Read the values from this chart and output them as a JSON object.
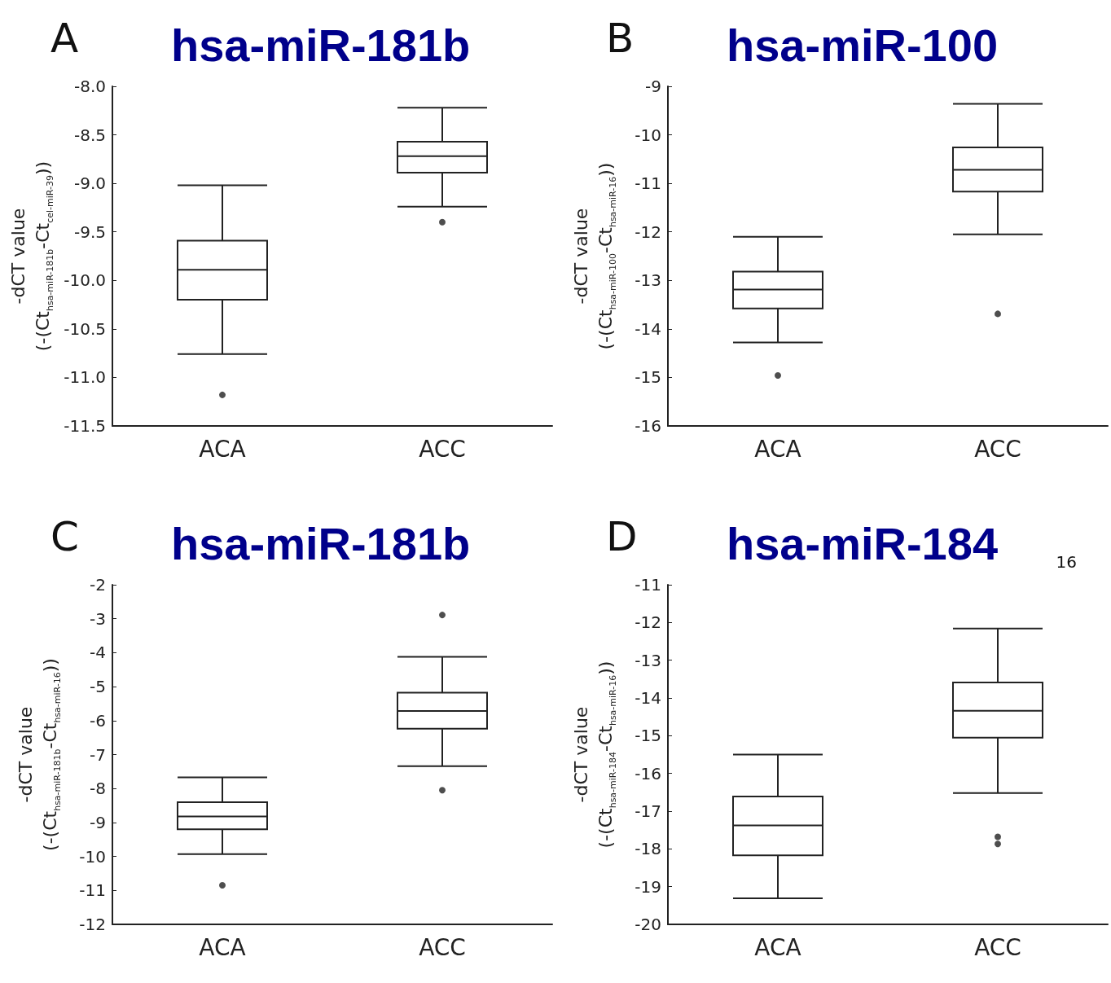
{
  "chart_data": [
    {
      "type": "box",
      "title": "hsa-miR-181b",
      "ylabel": "-dCT value\n(-(Ct$_{hsa-miR-181b}$-Ct$_{cel-miR-39}$))",
      "annotations": [
        "A"
      ],
      "categories": [
        "ACA",
        "ACC"
      ],
      "ylim": [
        -11.5,
        -8.0
      ],
      "yticks": [
        {
          "value": -11.5,
          "label": "-11.5"
        },
        {
          "value": -11,
          "label": "-11.0"
        },
        {
          "value": -10.5,
          "label": "-10.5"
        },
        {
          "value": -10,
          "label": "-10.0"
        },
        {
          "value": -9.5,
          "label": "-9.5"
        },
        {
          "value": -9,
          "label": "-9.0"
        },
        {
          "value": -8.5,
          "label": "-8.5"
        },
        {
          "value": -8,
          "label": "-8.0"
        }
      ],
      "grid": false,
      "boxes": [
        {
          "low": -10.76,
          "q1": -10.2,
          "median": -9.89,
          "q3": -9.59,
          "high": -9.02,
          "outliers": [
            -11.18
          ]
        },
        {
          "low": -9.24,
          "q1": -8.89,
          "median": -8.72,
          "q3": -8.57,
          "high": -8.22,
          "outliers": [
            -9.4
          ]
        }
      ]
    },
    {
      "type": "box",
      "title": "hsa-miR-100",
      "ylabel": "-dCT value\n(-(Ct$_{hsa-miR-100}$-Ct$_{hsa-miR-16}$))",
      "annotations": [
        "B"
      ],
      "categories": [
        "ACA",
        "ACC"
      ],
      "ylim": [
        -16,
        -9
      ],
      "yticks": [
        -16,
        -15,
        -14,
        -13,
        -12,
        -11,
        -10,
        -9
      ],
      "grid": false,
      "boxes": [
        {
          "low": -14.28,
          "q1": -13.58,
          "median": -13.19,
          "q3": -12.82,
          "high": -12.1,
          "outliers": [
            -14.96
          ]
        },
        {
          "low": -12.05,
          "q1": -11.17,
          "median": -10.72,
          "q3": -10.26,
          "high": -9.36,
          "outliers": [
            -13.69
          ]
        }
      ]
    },
    {
      "type": "box",
      "title": "hsa-miR-181b",
      "ylabel": "-dCT value\n(-(Ct$_{hsa-miR-181b}$-Ct$_{hsa-miR-16}$))",
      "annotations": [
        "C"
      ],
      "categories": [
        "ACA",
        "ACC"
      ],
      "ylim": [
        -12,
        -2
      ],
      "yticks": [
        -12,
        -11,
        -10,
        -9,
        -8,
        -7,
        -6,
        -5,
        -4,
        -3,
        -2
      ],
      "grid": false,
      "boxes": [
        {
          "low": -9.93,
          "q1": -9.2,
          "median": -8.82,
          "q3": -8.4,
          "high": -7.67,
          "outliers": [
            -10.85
          ]
        },
        {
          "low": -7.34,
          "q1": -6.24,
          "median": -5.72,
          "q3": -5.18,
          "high": -4.12,
          "outliers": [
            -2.89,
            -8.05
          ]
        }
      ]
    },
    {
      "type": "box",
      "title": "hsa-miR-184",
      "ylabel": "-dCT value\n(-(Ct$_{hsa-miR-184}$-Ct$_{hsa-miR-16}$))",
      "annotations": [
        "D",
        "16"
      ],
      "categories": [
        "ACA",
        "ACC"
      ],
      "ylim": [
        -20,
        -11
      ],
      "yticks": [
        -20,
        -19,
        -18,
        -17,
        -16,
        -15,
        -14,
        -13,
        -12,
        -11
      ],
      "grid": false,
      "boxes": [
        {
          "low": -19.31,
          "q1": -18.17,
          "median": -17.38,
          "q3": -16.61,
          "high": -15.5
        },
        {
          "low": -16.52,
          "q1": -15.05,
          "median": -14.34,
          "q3": -13.59,
          "high": -12.16,
          "outliers": [
            -17.68,
            -17.87
          ]
        }
      ]
    }
  ]
}
